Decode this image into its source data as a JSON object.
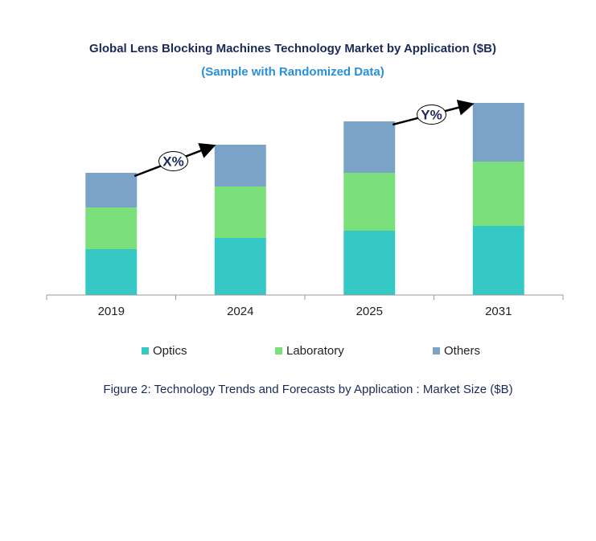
{
  "chart_data": {
    "type": "bar",
    "stacked": true,
    "title": "Global Lens Blocking Machines Technology Market by Application ($B)",
    "subtitle": "(Sample with Randomized Data)",
    "caption": "Figure 2: Technology  Trends  and Forecasts by Application : Market Size ($B)",
    "categories": [
      "2019",
      "2024",
      "2025",
      "2031"
    ],
    "series": [
      {
        "name": "Optics",
        "color": "#36c8c4",
        "values": [
          5.7,
          7.1,
          8.0,
          8.6
        ]
      },
      {
        "name": "Laboratory",
        "color": "#7be07b",
        "values": [
          5.2,
          6.4,
          7.2,
          8.0
        ]
      },
      {
        "name": "Others",
        "color": "#7ba3c8",
        "values": [
          4.3,
          5.2,
          6.4,
          7.3
        ]
      }
    ],
    "ylim": [
      0,
      24
    ],
    "grid": false,
    "legend": "bottom",
    "annotations": [
      {
        "label": "X%",
        "from": "2019",
        "to": "2024"
      },
      {
        "label": "Y%",
        "from": "2025",
        "to": "2031"
      }
    ]
  }
}
